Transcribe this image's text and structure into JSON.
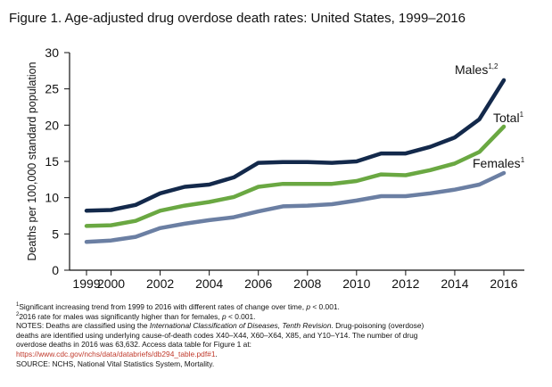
{
  "figure_title": "Figure 1. Age-adjusted drug overdose death rates: United States, 1999–2016",
  "chart_data": {
    "type": "line",
    "title": "Figure 1. Age-adjusted drug overdose death rates: United States, 1999–2016",
    "xlabel": "",
    "ylabel": "Deaths per 100,000 standard population",
    "xlim": [
      1999,
      2016
    ],
    "ylim": [
      0,
      30
    ],
    "x_ticks": [
      1999,
      2000,
      2002,
      2004,
      2006,
      2008,
      2010,
      2012,
      2014,
      2016
    ],
    "x_tick_labels": [
      "1999",
      "2000",
      "2002",
      "2004",
      "2006",
      "2008",
      "2010",
      "2012",
      "2014",
      "2016"
    ],
    "y_ticks": [
      0,
      5,
      10,
      15,
      20,
      25,
      30
    ],
    "y_tick_labels": [
      "0",
      "5",
      "10",
      "15",
      "20",
      "25",
      "30"
    ],
    "grid": false,
    "x": [
      1999,
      2000,
      2001,
      2002,
      2003,
      2004,
      2005,
      2006,
      2007,
      2008,
      2009,
      2010,
      2011,
      2012,
      2013,
      2014,
      2015,
      2016
    ],
    "series": [
      {
        "name": "Males",
        "label_sup": "1,2",
        "color": "#13294b",
        "values": [
          8.2,
          8.3,
          9.0,
          10.6,
          11.5,
          11.8,
          12.8,
          14.8,
          14.9,
          14.9,
          14.8,
          15.0,
          16.1,
          16.1,
          17.0,
          18.3,
          20.8,
          26.2
        ]
      },
      {
        "name": "Total",
        "label_sup": "1",
        "color": "#6aa842",
        "values": [
          6.1,
          6.2,
          6.8,
          8.2,
          8.9,
          9.4,
          10.1,
          11.5,
          11.9,
          11.9,
          11.9,
          12.3,
          13.2,
          13.1,
          13.8,
          14.7,
          16.3,
          19.8
        ]
      },
      {
        "name": "Females",
        "label_sup": "1",
        "color": "#6b7fa3",
        "values": [
          3.9,
          4.1,
          4.6,
          5.8,
          6.4,
          6.9,
          7.3,
          8.1,
          8.8,
          8.9,
          9.1,
          9.6,
          10.2,
          10.2,
          10.6,
          11.1,
          11.8,
          13.4
        ]
      }
    ]
  },
  "notes": {
    "fn1_sup": "1",
    "fn1_text": "Significant increasing trend from 1999 to 2016 with different rates of change over time, ",
    "fn1_p": "p",
    "fn1_end": " < 0.001.",
    "fn2_sup": "2",
    "fn2_text": "2016 rate for males was significantly higher than for females, ",
    "fn2_p": "p",
    "fn2_end": " < 0.001.",
    "notes_a": "NOTES: Deaths are classified using the ",
    "notes_italic": "International Classification of Diseases, Tenth Revision",
    "notes_b": ". Drug-poisoning (overdose)",
    "notes_line2": "deaths are identified using underlying cause-of-death codes X40–X44, X60–X64, X85, and Y10–Y14.  The number of drug",
    "notes_line3": "overdose deaths in 2016 was 63,632. Access data table for Figure 1 at:",
    "data_link": "https://www.cdc.gov/nchs/data/databriefs/db294_table.pdf#1",
    "data_link_end": ".",
    "source": "SOURCE: NCHS, National Vital Statistics System, Mortality."
  }
}
